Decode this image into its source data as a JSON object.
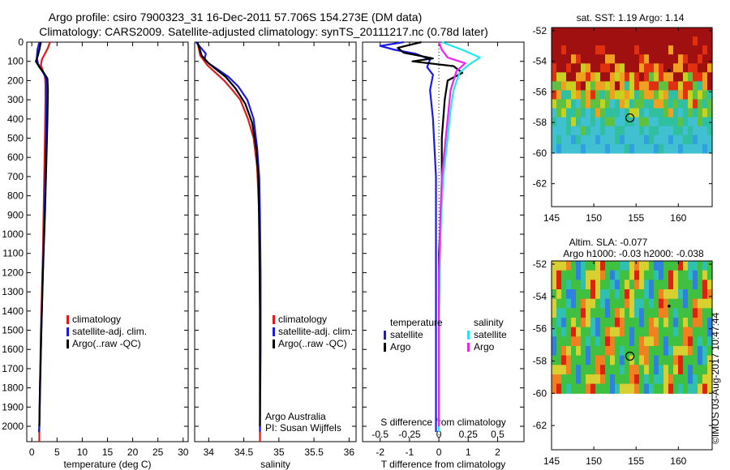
{
  "header": {
    "line1": "Argo profile: csiro 7900323_31 16-Dec-2011 57.706S 154.273E (DM data)",
    "line2": "Climatology: CARS2009. Satellite-adjusted climatology: synTS_20111217.nc (0.78d later)"
  },
  "colors": {
    "climatology": "#e01a1a",
    "satellite": "#1a1ae6",
    "argo": "#000000",
    "sal_satellite": "#20e8f0",
    "sal_argo": "#f020f0"
  },
  "footer_credit": "©IMOS 03-Aug-2017 10:47:44",
  "chart_data": [
    {
      "type": "line",
      "name": "temperature",
      "xlabel": "temperature (deg C)",
      "ylabel": "",
      "xlim": [
        -1,
        31
      ],
      "ylim": [
        2080,
        0
      ],
      "invert_y": true,
      "xticks": [
        0,
        5,
        10,
        15,
        20,
        25,
        30
      ],
      "yticks": [
        0,
        100,
        200,
        300,
        400,
        500,
        600,
        700,
        800,
        900,
        1000,
        1100,
        1200,
        1300,
        1400,
        1500,
        1600,
        1700,
        1800,
        1900,
        2000
      ],
      "legend": [
        "climatology",
        "satellite-adj. clim.",
        "Argo(..raw -QC)"
      ],
      "series": [
        {
          "name": "climatology",
          "color": "#e01a1a",
          "points": [
            [
              3.6,
              0
            ],
            [
              3.2,
              30
            ],
            [
              2.6,
              60
            ],
            [
              2.0,
              90
            ],
            [
              1.8,
              120
            ],
            [
              2.2,
              150
            ],
            [
              2.6,
              180
            ],
            [
              2.7,
              220
            ],
            [
              2.7,
              300
            ],
            [
              2.6,
              500
            ],
            [
              2.4,
              800
            ],
            [
              2.2,
              1100
            ],
            [
              1.8,
              1500
            ],
            [
              1.5,
              2000
            ],
            [
              1.5,
              2080
            ]
          ]
        },
        {
          "name": "satellite-adj. clim.",
          "color": "#1a1ae6",
          "points": [
            [
              1.5,
              0
            ],
            [
              1.1,
              40
            ],
            [
              1.0,
              80
            ],
            [
              1.2,
              110
            ],
            [
              1.8,
              140
            ],
            [
              2.5,
              170
            ],
            [
              2.9,
              200
            ],
            [
              2.9,
              300
            ],
            [
              2.8,
              500
            ],
            [
              2.6,
              800
            ],
            [
              2.3,
              1100
            ],
            [
              1.9,
              1500
            ],
            [
              1.5,
              2000
            ],
            [
              1.4,
              2030
            ]
          ]
        },
        {
          "name": "Argo(..raw -QC)",
          "color": "#000000",
          "points": [
            [
              1.8,
              0
            ],
            [
              1.5,
              40
            ],
            [
              1.2,
              70
            ],
            [
              0.8,
              100
            ],
            [
              1.5,
              130
            ],
            [
              2.4,
              160
            ],
            [
              3.1,
              190
            ],
            [
              3.2,
              250
            ],
            [
              3.1,
              400
            ],
            [
              2.9,
              600
            ],
            [
              2.6,
              900
            ],
            [
              2.2,
              1200
            ],
            [
              1.9,
              1500
            ],
            [
              1.6,
              1800
            ],
            [
              1.5,
              2000
            ]
          ]
        }
      ]
    },
    {
      "type": "line",
      "name": "salinity",
      "xlabel": "salinity",
      "ylabel": "",
      "xlim": [
        33.8,
        36.1
      ],
      "ylim": [
        2080,
        0
      ],
      "invert_y": true,
      "xticks": [
        34,
        34.5,
        35,
        35.5,
        36
      ],
      "legend": [
        "climatology",
        "satellite-adj. clim.",
        "Argo(..raw -QC)"
      ],
      "annotation": [
        "Argo Australia",
        "PI: Susan Wijffels"
      ],
      "series": [
        {
          "name": "climatology",
          "color": "#e01a1a",
          "points": [
            [
              33.84,
              0
            ],
            [
              33.88,
              70
            ],
            [
              33.98,
              120
            ],
            [
              34.1,
              160
            ],
            [
              34.22,
              200
            ],
            [
              34.34,
              250
            ],
            [
              34.45,
              300
            ],
            [
              34.56,
              400
            ],
            [
              34.64,
              500
            ],
            [
              34.69,
              650
            ],
            [
              34.72,
              900
            ],
            [
              34.73,
              1200
            ],
            [
              34.73,
              1600
            ],
            [
              34.73,
              2080
            ]
          ]
        },
        {
          "name": "satellite-adj. clim.",
          "color": "#1a1ae6",
          "points": [
            [
              33.82,
              0
            ],
            [
              33.96,
              60
            ],
            [
              33.94,
              90
            ],
            [
              34.0,
              110
            ],
            [
              34.12,
              140
            ],
            [
              34.28,
              180
            ],
            [
              34.42,
              230
            ],
            [
              34.55,
              300
            ],
            [
              34.64,
              400
            ],
            [
              34.69,
              550
            ],
            [
              34.72,
              700
            ],
            [
              34.73,
              900
            ],
            [
              34.74,
              1200
            ],
            [
              34.74,
              1600
            ],
            [
              34.73,
              2000
            ],
            [
              34.73,
              2030
            ]
          ]
        },
        {
          "name": "Argo(..raw -QC)",
          "color": "#000000",
          "points": [
            [
              33.84,
              0
            ],
            [
              33.9,
              70
            ],
            [
              34.0,
              110
            ],
            [
              34.1,
              140
            ],
            [
              34.24,
              180
            ],
            [
              34.38,
              240
            ],
            [
              34.52,
              320
            ],
            [
              34.62,
              420
            ],
            [
              34.68,
              560
            ],
            [
              34.71,
              720
            ],
            [
              34.72,
              1000
            ],
            [
              34.73,
              1400
            ],
            [
              34.73,
              1800
            ],
            [
              34.73,
              2000
            ]
          ]
        }
      ]
    },
    {
      "type": "line",
      "name": "difference",
      "xlabel": "T difference from climatology",
      "x2label": "S difference from climatology",
      "xlim": [
        -2.6,
        2.9
      ],
      "ylim": [
        2080,
        0
      ],
      "invert_y": true,
      "xticks": [
        -2,
        -1,
        0,
        1,
        2
      ],
      "x2ticks": [
        -0.5,
        -0.25,
        0,
        0.25,
        0.5
      ],
      "x2_factor": 4,
      "legend_groups": [
        {
          "title": "temperature",
          "items": [
            {
              "label": "satellite",
              "color": "#1a1ae6"
            },
            {
              "label": "Argo",
              "color": "#000000"
            }
          ]
        },
        {
          "title": "salinity",
          "items": [
            {
              "label": "satellite",
              "color": "#20e8f0"
            },
            {
              "label": "Argo",
              "color": "#f020f0"
            }
          ]
        }
      ],
      "series": [
        {
          "name": "temperature satellite",
          "color": "#1a1ae6",
          "points": [
            [
              -1.2,
              0
            ],
            [
              -2.0,
              20
            ],
            [
              -1.5,
              40
            ],
            [
              -0.8,
              60
            ],
            [
              -0.3,
              90
            ],
            [
              -0.4,
              130
            ],
            [
              -0.2,
              170
            ],
            [
              -0.3,
              250
            ],
            [
              -0.2,
              400
            ],
            [
              -0.1,
              700
            ],
            [
              -0.1,
              1000
            ],
            [
              -0.1,
              1500
            ],
            [
              -0.1,
              2030
            ]
          ]
        },
        {
          "name": "temperature Argo",
          "color": "#000000",
          "points": [
            [
              -0.6,
              0
            ],
            [
              -1.4,
              30
            ],
            [
              -1.2,
              55
            ],
            [
              -0.2,
              85
            ],
            [
              -0.9,
              100
            ],
            [
              0.5,
              125
            ],
            [
              0.8,
              160
            ],
            [
              0.3,
              200
            ],
            [
              0.2,
              300
            ],
            [
              0.1,
              500
            ],
            [
              0.1,
              800
            ],
            [
              0.0,
              1100
            ],
            [
              0.0,
              1500
            ],
            [
              0.0,
              2000
            ]
          ]
        },
        {
          "name": "salinity satellite",
          "color": "#20e8f0",
          "points": [
            [
              0.1,
              0
            ],
            [
              0.8,
              40
            ],
            [
              1.4,
              80
            ],
            [
              1.0,
              120
            ],
            [
              0.7,
              160
            ],
            [
              0.5,
              250
            ],
            [
              0.4,
              350
            ],
            [
              0.3,
              500
            ],
            [
              0.15,
              700
            ],
            [
              0.08,
              900
            ],
            [
              0.04,
              1100
            ],
            [
              0.0,
              1500
            ],
            [
              0.0,
              2030
            ]
          ]
        },
        {
          "name": "salinity Argo",
          "color": "#f020f0",
          "points": [
            [
              0.0,
              0
            ],
            [
              0.1,
              40
            ],
            [
              0.3,
              80
            ],
            [
              0.9,
              110
            ],
            [
              0.6,
              150
            ],
            [
              0.4,
              250
            ],
            [
              0.3,
              400
            ],
            [
              0.2,
              550
            ],
            [
              0.1,
              700
            ],
            [
              0.05,
              900
            ],
            [
              0.0,
              1200
            ],
            [
              0.0,
              2000
            ]
          ]
        }
      ]
    },
    {
      "type": "heatmap",
      "name": "sst-map",
      "title": "sat. SST: 1.19 Argo: 1.14",
      "xlim": [
        145,
        164
      ],
      "ylim": [
        -63.5,
        -51.8
      ],
      "xticks": [
        145,
        150,
        155,
        160
      ],
      "yticks": [
        -52,
        -54,
        -56,
        -58,
        -60,
        -62
      ],
      "data_ylim": [
        -60,
        -51.8
      ],
      "markers": [
        {
          "lon": 154.27,
          "lat": -57.7,
          "shape": "circle"
        },
        {
          "lon": 158.9,
          "lat": -54.6,
          "shape": "dot"
        }
      ]
    },
    {
      "type": "heatmap",
      "name": "sla-map",
      "title": "Altim. SLA: -0.077",
      "subtitle": "Argo h1000: -0.03 h2000: -0.038",
      "xlim": [
        145,
        164
      ],
      "ylim": [
        -63.5,
        -51.8
      ],
      "xticks": [
        145,
        150,
        155,
        160
      ],
      "yticks": [
        -52,
        -54,
        -56,
        -58,
        -60,
        -62
      ],
      "data_ylim": [
        -60,
        -51.8
      ],
      "markers": [
        {
          "lon": 154.27,
          "lat": -57.7,
          "shape": "circle"
        },
        {
          "lon": 158.9,
          "lat": -54.6,
          "shape": "dot"
        }
      ]
    }
  ]
}
